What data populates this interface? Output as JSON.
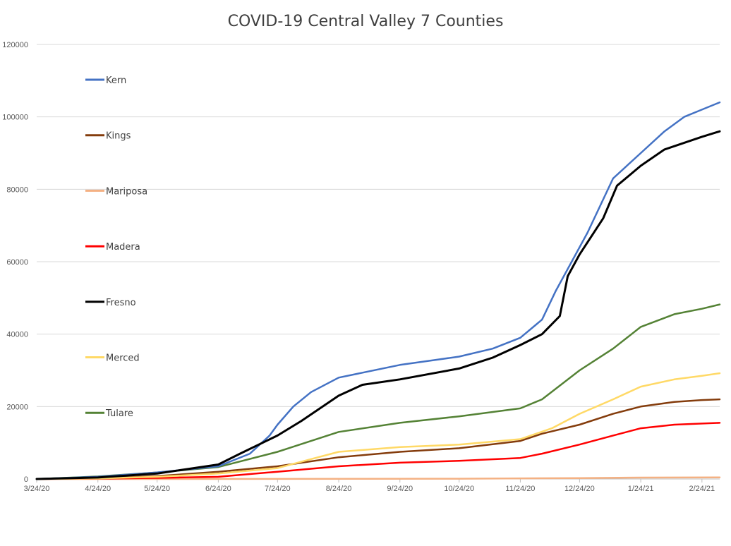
{
  "chart_data": {
    "type": "line",
    "title": "COVID-19 Central Valley 7 Counties",
    "xlabel": "",
    "ylabel": "",
    "x_start": "3/24/20",
    "x_end": "3/5/21",
    "x_ticks": [
      "3/24/20",
      "4/24/20",
      "5/24/20",
      "6/24/20",
      "7/24/20",
      "8/24/20",
      "9/24/20",
      "10/24/20",
      "11/24/20",
      "12/24/20",
      "1/24/21",
      "2/24/21"
    ],
    "ylim": [
      0,
      120000
    ],
    "y_ticks": [
      0,
      20000,
      40000,
      60000,
      80000,
      100000,
      120000
    ],
    "grid": "horizontal",
    "legend": "left",
    "series": [
      {
        "name": "Kern",
        "color": "#4472c4",
        "points": [
          [
            "3/24/20",
            0
          ],
          [
            "4/24/20",
            600
          ],
          [
            "5/24/20",
            1800
          ],
          [
            "6/24/20",
            3500
          ],
          [
            "7/10/20",
            7000
          ],
          [
            "7/20/20",
            12000
          ],
          [
            "7/24/20",
            15000
          ],
          [
            "8/1/20",
            20000
          ],
          [
            "8/10/20",
            24000
          ],
          [
            "8/24/20",
            28000
          ],
          [
            "9/24/20",
            31500
          ],
          [
            "10/24/20",
            33800
          ],
          [
            "11/10/20",
            36000
          ],
          [
            "11/24/20",
            39000
          ],
          [
            "12/5/20",
            44000
          ],
          [
            "12/12/20",
            52000
          ],
          [
            "12/20/20",
            60000
          ],
          [
            "12/28/20",
            68000
          ],
          [
            "1/10/21",
            83000
          ],
          [
            "1/24/21",
            90000
          ],
          [
            "2/5/21",
            96000
          ],
          [
            "2/15/21",
            100000
          ],
          [
            "2/24/21",
            102000
          ],
          [
            "3/5/21",
            104000
          ]
        ]
      },
      {
        "name": "Kings",
        "color": "#843c0c",
        "points": [
          [
            "3/24/20",
            0
          ],
          [
            "4/24/20",
            200
          ],
          [
            "5/24/20",
            800
          ],
          [
            "6/24/20",
            2000
          ],
          [
            "7/24/20",
            3500
          ],
          [
            "8/24/20",
            6000
          ],
          [
            "9/24/20",
            7500
          ],
          [
            "10/24/20",
            8500
          ],
          [
            "11/24/20",
            10500
          ],
          [
            "12/5/20",
            12500
          ],
          [
            "12/24/20",
            15000
          ],
          [
            "1/10/21",
            18000
          ],
          [
            "1/24/21",
            20000
          ],
          [
            "2/10/21",
            21300
          ],
          [
            "2/24/21",
            21800
          ],
          [
            "3/5/21",
            22000
          ]
        ]
      },
      {
        "name": "Mariposa",
        "color": "#f4b183",
        "points": [
          [
            "3/24/20",
            0
          ],
          [
            "7/24/20",
            20
          ],
          [
            "10/24/20",
            80
          ],
          [
            "12/24/20",
            250
          ],
          [
            "1/24/21",
            380
          ],
          [
            "3/5/21",
            420
          ]
        ]
      },
      {
        "name": "Madera",
        "color": "#ff0000",
        "points": [
          [
            "3/24/20",
            0
          ],
          [
            "4/24/20",
            100
          ],
          [
            "5/24/20",
            300
          ],
          [
            "6/24/20",
            600
          ],
          [
            "7/24/20",
            2000
          ],
          [
            "8/24/20",
            3500
          ],
          [
            "9/24/20",
            4500
          ],
          [
            "10/24/20",
            5000
          ],
          [
            "11/24/20",
            5800
          ],
          [
            "12/5/20",
            7000
          ],
          [
            "12/24/20",
            9500
          ],
          [
            "1/10/21",
            12000
          ],
          [
            "1/24/21",
            14000
          ],
          [
            "2/10/21",
            15000
          ],
          [
            "3/5/21",
            15500
          ]
        ]
      },
      {
        "name": "Fresno",
        "color": "#000000",
        "points": [
          [
            "3/24/20",
            0
          ],
          [
            "4/24/20",
            400
          ],
          [
            "5/24/20",
            1500
          ],
          [
            "6/24/20",
            4000
          ],
          [
            "7/5/20",
            7000
          ],
          [
            "7/24/20",
            12000
          ],
          [
            "8/5/20",
            16000
          ],
          [
            "8/24/20",
            23000
          ],
          [
            "9/5/20",
            26000
          ],
          [
            "9/24/20",
            27500
          ],
          [
            "10/24/20",
            30500
          ],
          [
            "11/10/20",
            33500
          ],
          [
            "11/24/20",
            37000
          ],
          [
            "12/5/20",
            40000
          ],
          [
            "12/14/20",
            45000
          ],
          [
            "12/18/20",
            56000
          ],
          [
            "12/24/20",
            62000
          ],
          [
            "1/5/21",
            72000
          ],
          [
            "1/12/21",
            81000
          ],
          [
            "1/24/21",
            86500
          ],
          [
            "2/5/21",
            91000
          ],
          [
            "2/24/21",
            94500
          ],
          [
            "3/5/21",
            96000
          ]
        ]
      },
      {
        "name": "Merced",
        "color": "#ffd966",
        "points": [
          [
            "3/24/20",
            0
          ],
          [
            "4/24/20",
            150
          ],
          [
            "5/24/20",
            600
          ],
          [
            "6/24/20",
            1500
          ],
          [
            "7/24/20",
            3000
          ],
          [
            "8/10/20",
            5500
          ],
          [
            "8/24/20",
            7500
          ],
          [
            "9/24/20",
            8800
          ],
          [
            "10/24/20",
            9500
          ],
          [
            "11/24/20",
            11000
          ],
          [
            "12/10/20",
            14000
          ],
          [
            "12/24/20",
            18000
          ],
          [
            "1/10/21",
            22000
          ],
          [
            "1/24/21",
            25500
          ],
          [
            "2/10/21",
            27500
          ],
          [
            "2/24/21",
            28500
          ],
          [
            "3/5/21",
            29200
          ]
        ]
      },
      {
        "name": "Tulare",
        "color": "#548235",
        "points": [
          [
            "3/24/20",
            0
          ],
          [
            "4/24/20",
            700
          ],
          [
            "5/24/20",
            1800
          ],
          [
            "6/24/20",
            3300
          ],
          [
            "7/24/20",
            7500
          ],
          [
            "8/24/20",
            13000
          ],
          [
            "9/24/20",
            15500
          ],
          [
            "10/24/20",
            17300
          ],
          [
            "11/24/20",
            19500
          ],
          [
            "12/5/20",
            22000
          ],
          [
            "12/24/20",
            30000
          ],
          [
            "1/10/21",
            36000
          ],
          [
            "1/24/21",
            42000
          ],
          [
            "2/10/21",
            45500
          ],
          [
            "2/24/21",
            47000
          ],
          [
            "3/5/21",
            48200
          ]
        ]
      }
    ]
  }
}
